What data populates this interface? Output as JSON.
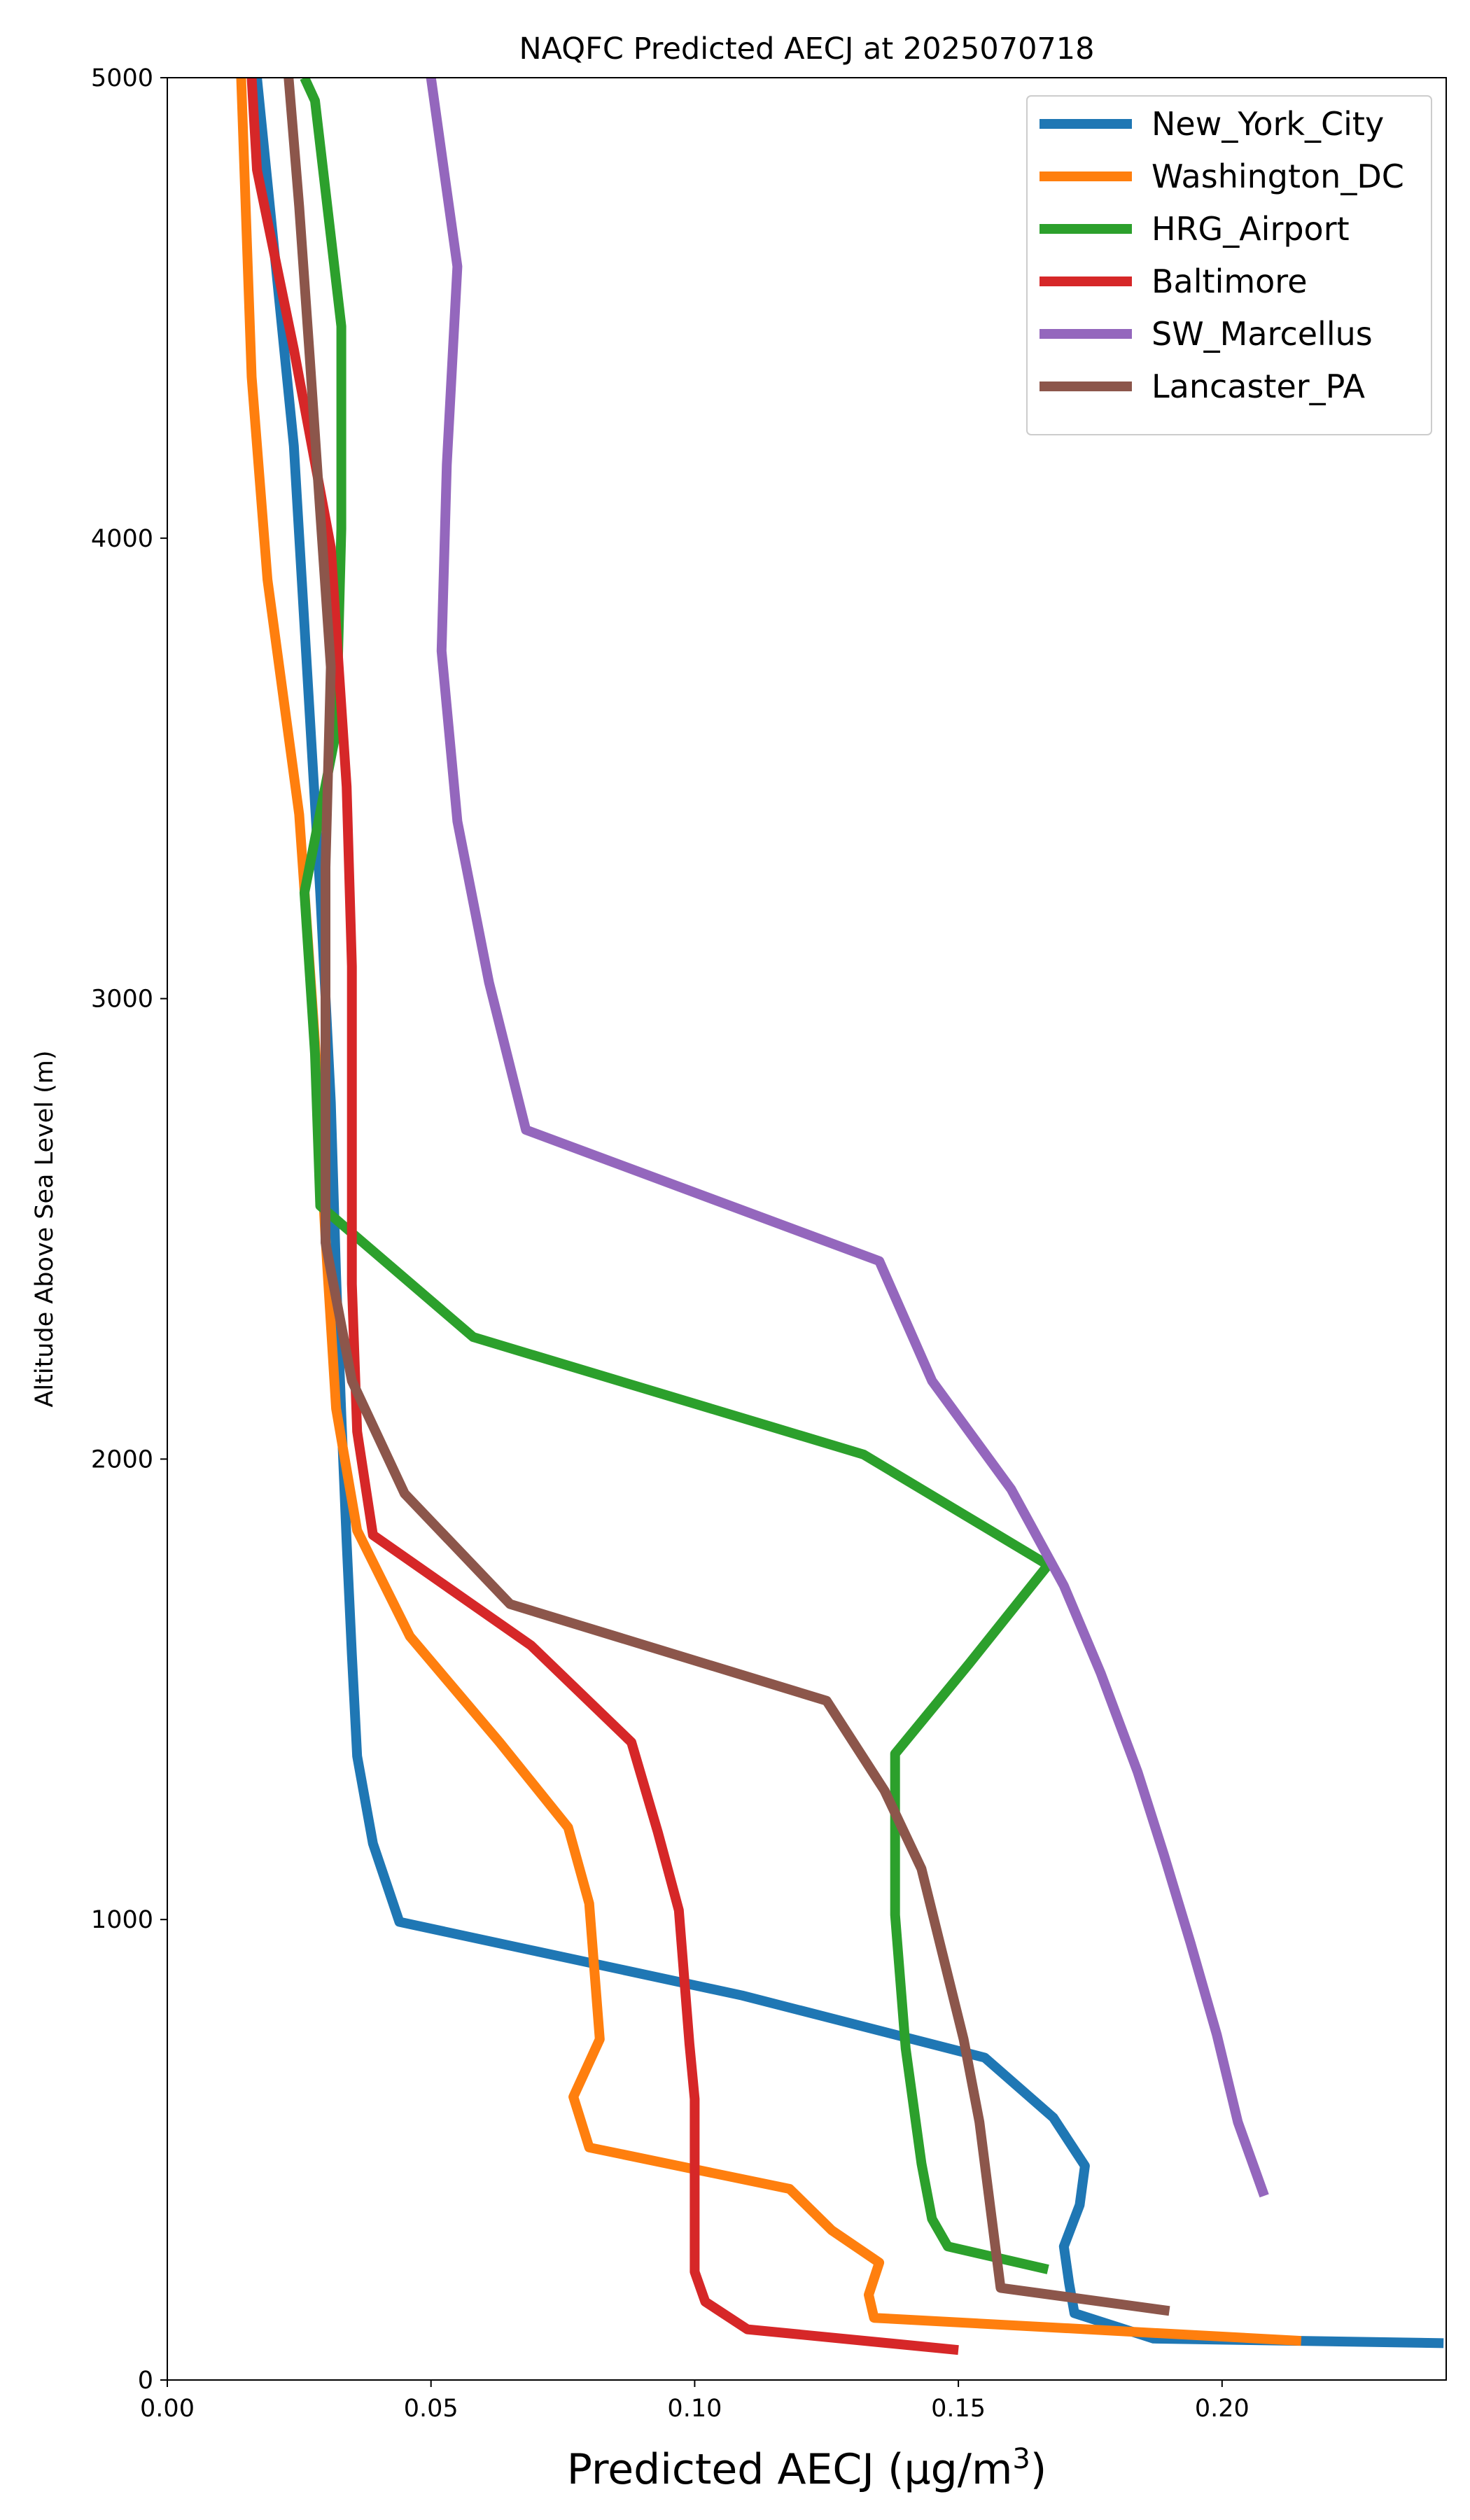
{
  "chart_data": {
    "type": "line",
    "title": "NAQFC Predicted AECJ at 2025070718",
    "xlabel": "Predicted AECJ (μg/m",
    "xlabel_sup": "3",
    "xlabel_tail": ")",
    "ylabel": "Altitude Above Sea Level (m)",
    "xlim": [
      0.0,
      0.2425
    ],
    "ylim": [
      0,
      5000
    ],
    "xticks": [
      0.0,
      0.05,
      0.1,
      0.15,
      0.2
    ],
    "xtick_labels": [
      "0.00",
      "0.05",
      "0.10",
      "0.15",
      "0.20"
    ],
    "yticks": [
      0,
      1000,
      2000,
      3000,
      4000,
      5000
    ],
    "ytick_labels": [
      "0",
      "1000",
      "2000",
      "3000",
      "4000",
      "5000"
    ],
    "grid": false,
    "legend_position": "top-right",
    "series": [
      {
        "name": "New_York_City",
        "color": "#1f77b4",
        "points": [
          [
            0.242,
            80
          ],
          [
            0.187,
            90
          ],
          [
            0.172,
            145
          ],
          [
            0.171,
            210
          ],
          [
            0.17,
            290
          ],
          [
            0.173,
            380
          ],
          [
            0.174,
            465
          ],
          [
            0.168,
            570
          ],
          [
            0.155,
            700
          ],
          [
            0.109,
            835
          ],
          [
            0.044,
            995
          ],
          [
            0.039,
            1165
          ],
          [
            0.036,
            1355
          ],
          [
            0.035,
            1575
          ],
          [
            0.034,
            1820
          ],
          [
            0.033,
            2095
          ],
          [
            0.032,
            2400
          ],
          [
            0.031,
            2775
          ],
          [
            0.029,
            3230
          ],
          [
            0.024,
            4200
          ],
          [
            0.017,
            5000
          ]
        ]
      },
      {
        "name": "Washington_DC",
        "color": "#ff7f0e",
        "points": [
          [
            0.215,
            85
          ],
          [
            0.134,
            135
          ],
          [
            0.133,
            185
          ],
          [
            0.135,
            255
          ],
          [
            0.126,
            325
          ],
          [
            0.118,
            415
          ],
          [
            0.08,
            505
          ],
          [
            0.077,
            615
          ],
          [
            0.082,
            740
          ],
          [
            0.08,
            1035
          ],
          [
            0.076,
            1200
          ],
          [
            0.063,
            1385
          ],
          [
            0.046,
            1615
          ],
          [
            0.036,
            1845
          ],
          [
            0.032,
            2110
          ],
          [
            0.03,
            2480
          ],
          [
            0.028,
            2905
          ],
          [
            0.025,
            3400
          ],
          [
            0.019,
            3910
          ],
          [
            0.016,
            4350
          ],
          [
            0.014,
            5000
          ]
        ]
      },
      {
        "name": "HRG_Airport",
        "color": "#2ca02c",
        "points": [
          [
            0.167,
            240
          ],
          [
            0.148,
            290
          ],
          [
            0.145,
            350
          ],
          [
            0.143,
            470
          ],
          [
            0.14,
            720
          ],
          [
            0.138,
            1010
          ],
          [
            0.138,
            1210
          ],
          [
            0.138,
            1360
          ],
          [
            0.152,
            1555
          ],
          [
            0.167,
            1770
          ],
          [
            0.132,
            2010
          ],
          [
            0.058,
            2265
          ],
          [
            0.029,
            2550
          ],
          [
            0.028,
            2880
          ],
          [
            0.026,
            3230
          ],
          [
            0.032,
            3580
          ],
          [
            0.033,
            4020
          ],
          [
            0.033,
            4460
          ],
          [
            0.028,
            4950
          ],
          [
            0.026,
            5000
          ]
        ]
      },
      {
        "name": "Baltimore",
        "color": "#d62728",
        "points": [
          [
            0.15,
            65
          ],
          [
            0.11,
            110
          ],
          [
            0.102,
            170
          ],
          [
            0.1,
            235
          ],
          [
            0.1,
            320
          ],
          [
            0.1,
            430
          ],
          [
            0.1,
            610
          ],
          [
            0.099,
            730
          ],
          [
            0.097,
            1020
          ],
          [
            0.093,
            1190
          ],
          [
            0.088,
            1385
          ],
          [
            0.069,
            1595
          ],
          [
            0.039,
            1835
          ],
          [
            0.036,
            2060
          ],
          [
            0.035,
            2380
          ],
          [
            0.035,
            2715
          ],
          [
            0.035,
            3070
          ],
          [
            0.034,
            3460
          ],
          [
            0.031,
            3980
          ],
          [
            0.024,
            4410
          ],
          [
            0.017,
            4800
          ],
          [
            0.016,
            5000
          ]
        ]
      },
      {
        "name": "SW_Marcellus",
        "color": "#9467bd",
        "points": [
          [
            0.208,
            400
          ],
          [
            0.203,
            560
          ],
          [
            0.199,
            750
          ],
          [
            0.194,
            950
          ],
          [
            0.189,
            1140
          ],
          [
            0.184,
            1320
          ],
          [
            0.177,
            1535
          ],
          [
            0.17,
            1725
          ],
          [
            0.16,
            1935
          ],
          [
            0.145,
            2170
          ],
          [
            0.135,
            2430
          ],
          [
            0.068,
            2715
          ],
          [
            0.061,
            3035
          ],
          [
            0.055,
            3385
          ],
          [
            0.052,
            3755
          ],
          [
            0.053,
            4160
          ],
          [
            0.055,
            4590
          ],
          [
            0.05,
            5000
          ]
        ]
      },
      {
        "name": "Lancaster_PA",
        "color": "#8c564b",
        "points": [
          [
            0.19,
            150
          ],
          [
            0.158,
            200
          ],
          [
            0.156,
            380
          ],
          [
            0.154,
            560
          ],
          [
            0.151,
            740
          ],
          [
            0.147,
            925
          ],
          [
            0.143,
            1110
          ],
          [
            0.136,
            1280
          ],
          [
            0.125,
            1475
          ],
          [
            0.065,
            1685
          ],
          [
            0.045,
            1925
          ],
          [
            0.035,
            2170
          ],
          [
            0.03,
            2470
          ],
          [
            0.03,
            2845
          ],
          [
            0.03,
            3285
          ],
          [
            0.031,
            3720
          ],
          [
            0.029,
            4055
          ],
          [
            0.027,
            4395
          ],
          [
            0.025,
            4720
          ],
          [
            0.023,
            5000
          ]
        ]
      }
    ]
  }
}
